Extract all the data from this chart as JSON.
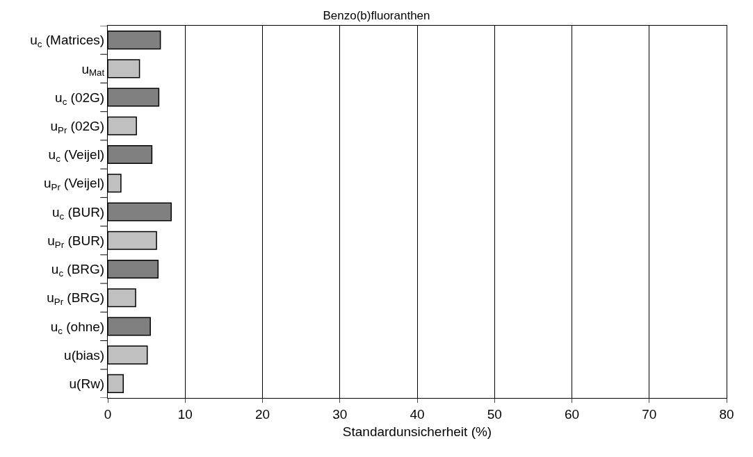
{
  "chart_data": {
    "type": "bar",
    "orientation": "horizontal",
    "title": "Benzo(b)fluoranthen",
    "xlabel": "Standardunsicherheit (%)",
    "categories": [
      "u$_{c}$ (Matrices)",
      "u$_{Mat}$",
      "u$_{c}$ (02G)",
      "u$_{Pr}$ (02G)",
      "u$_{c}$ (Veijel)",
      "u$_{Pr}$ (Veijel)",
      "u$_{c}$ (BUR)",
      "u$_{Pr}$ (BUR)",
      "u$_{c}$ (BRG)",
      "u$_{Pr}$ (BRG)",
      "u$_{c}$ (ohne)",
      "u(bias)",
      "u(Rw)"
    ],
    "values": [
      6.8,
      4.1,
      6.6,
      3.7,
      5.7,
      1.7,
      8.2,
      6.3,
      6.5,
      3.6,
      5.5,
      5.1,
      2.0
    ],
    "colors": [
      "#808080",
      "#c0c0c0",
      "#808080",
      "#c0c0c0",
      "#808080",
      "#c0c0c0",
      "#808080",
      "#c0c0c0",
      "#808080",
      "#c0c0c0",
      "#808080",
      "#c0c0c0",
      "#c0c0c0"
    ],
    "xlim": [
      0,
      80
    ],
    "xticks": [
      0,
      10,
      20,
      30,
      40,
      50,
      60,
      70,
      80
    ],
    "grid": "x",
    "legend": false
  }
}
